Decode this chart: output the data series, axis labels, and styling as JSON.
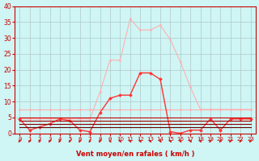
{
  "xlabel": "Vent moyen/en rafales ( km/h )",
  "bg_color": "#cff5f5",
  "grid_color": "#b0c8c8",
  "xlim": [
    -0.5,
    23.5
  ],
  "ylim": [
    0,
    40
  ],
  "yticks": [
    0,
    5,
    10,
    15,
    20,
    25,
    30,
    35,
    40
  ],
  "xticks": [
    0,
    1,
    2,
    3,
    4,
    5,
    6,
    7,
    8,
    9,
    10,
    11,
    12,
    13,
    14,
    15,
    16,
    17,
    18,
    19,
    20,
    21,
    22,
    23
  ],
  "series": [
    {
      "name": "rafales_pale",
      "color": "#ffb0b0",
      "linewidth": 0.8,
      "marker": "D",
      "markersize": 1.5,
      "values": [
        4.5,
        4.5,
        4.5,
        4.5,
        4.5,
        4.5,
        4.5,
        4.5,
        13.0,
        23.0,
        23.0,
        36.0,
        32.5,
        32.5,
        34.0,
        29.5,
        22.5,
        14.5,
        7.5,
        7.5,
        7.5,
        7.5,
        7.5,
        7.5
      ]
    },
    {
      "name": "flat_pale",
      "color": "#ffb0b0",
      "linewidth": 0.8,
      "marker": "D",
      "markersize": 1.5,
      "values": [
        7.5,
        7.5,
        7.5,
        7.5,
        7.5,
        7.5,
        7.5,
        7.5,
        7.5,
        7.5,
        7.5,
        7.5,
        7.5,
        7.5,
        7.5,
        7.5,
        7.5,
        7.5,
        7.5,
        7.5,
        7.5,
        7.5,
        7.5,
        7.5
      ]
    },
    {
      "name": "vent_moyen_bright",
      "color": "#ff3333",
      "linewidth": 1.0,
      "marker": "D",
      "markersize": 2.0,
      "values": [
        4.5,
        1.0,
        2.0,
        3.0,
        4.5,
        4.0,
        1.0,
        0.5,
        6.5,
        11.0,
        12.0,
        12.0,
        19.0,
        19.0,
        17.0,
        0.5,
        0.0,
        1.0,
        1.0,
        4.5,
        1.0,
        4.5,
        4.5,
        4.5
      ]
    },
    {
      "name": "flat_red1",
      "color": "#cc0000",
      "linewidth": 0.8,
      "marker": null,
      "markersize": 0,
      "values": [
        5.0,
        5.0,
        5.0,
        5.0,
        5.0,
        5.0,
        5.0,
        5.0,
        5.0,
        5.0,
        5.0,
        5.0,
        5.0,
        5.0,
        5.0,
        5.0,
        5.0,
        5.0,
        5.0,
        5.0,
        5.0,
        5.0,
        5.0,
        5.0
      ]
    },
    {
      "name": "flat_red2",
      "color": "#aa0000",
      "linewidth": 0.8,
      "marker": null,
      "markersize": 0,
      "values": [
        4.0,
        4.0,
        4.0,
        4.0,
        4.0,
        4.0,
        4.0,
        4.0,
        4.0,
        4.0,
        4.0,
        4.0,
        4.0,
        4.0,
        4.0,
        4.0,
        4.0,
        4.0,
        4.0,
        4.0,
        4.0,
        4.0,
        4.0,
        4.0
      ]
    },
    {
      "name": "flat_red3",
      "color": "#880000",
      "linewidth": 0.8,
      "marker": null,
      "markersize": 0,
      "values": [
        3.0,
        3.0,
        3.0,
        3.0,
        3.0,
        3.0,
        3.0,
        3.0,
        3.0,
        3.0,
        3.0,
        3.0,
        3.0,
        3.0,
        3.0,
        3.0,
        3.0,
        3.0,
        3.0,
        3.0,
        3.0,
        3.0,
        3.0,
        3.0
      ]
    },
    {
      "name": "flat_red4",
      "color": "#660000",
      "linewidth": 0.8,
      "marker": null,
      "markersize": 0,
      "values": [
        2.0,
        2.0,
        2.0,
        2.0,
        2.0,
        2.0,
        2.0,
        2.0,
        2.0,
        2.0,
        2.0,
        2.0,
        2.0,
        2.0,
        2.0,
        2.0,
        2.0,
        2.0,
        2.0,
        2.0,
        2.0,
        2.0,
        2.0,
        2.0
      ]
    }
  ],
  "arrow_color": "#cc2222",
  "arrow_directions": [
    -1,
    -1,
    -1,
    -1,
    -1,
    -1,
    -1,
    -1,
    -1,
    1,
    1,
    1,
    1,
    1,
    1,
    1,
    1,
    1,
    1,
    -1,
    -1,
    -1,
    -1,
    -1
  ]
}
